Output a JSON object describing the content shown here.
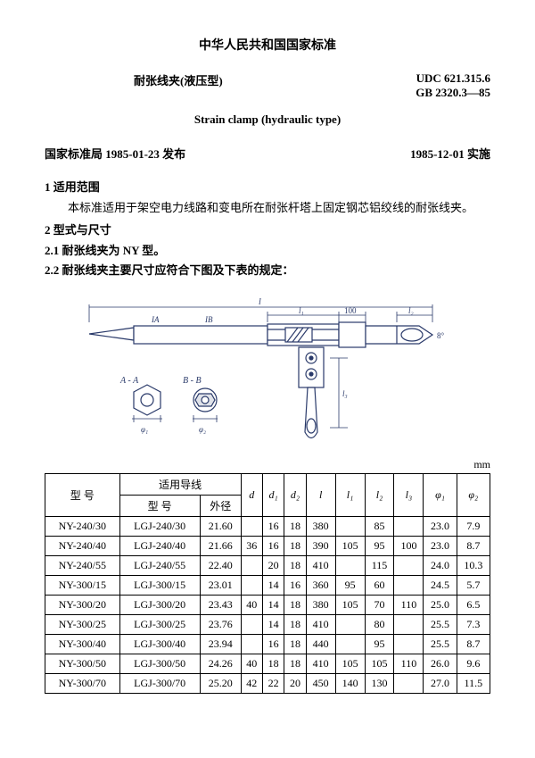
{
  "header": {
    "main_title": "中华人民共和国国家标准",
    "sub_title_cn": "耐张线夹(液压型)",
    "code_udc": "UDC  621.315.6",
    "code_gb": "GB  2320.3—85",
    "sub_title_en": "Strain  clamp    (hydraulic  type)",
    "publisher": "国家标准局 1985-01-23 发布",
    "effective": "1985-12-01 实施"
  },
  "sections": {
    "s1_head": "1 适用范围",
    "s1_body": "本标准适用于架空电力线路和变电所在耐张杆塔上固定钢芯铝绞线的耐张线夹。",
    "s2_head": "2 型式与尺寸",
    "s2_1": "2.1  耐张线夹为 NY 型。",
    "s2_2": "2.2  耐张线夹主要尺寸应符合下图及下表的规定："
  },
  "figure": {
    "labels": {
      "l": "l",
      "l1": "l₁",
      "l2": "l₂",
      "hundred": "100",
      "l3": "l₃",
      "angle": "8°",
      "aa": "A - A",
      "bb": "B - B",
      "phi1": "φ₁",
      "phi2": "φ₂",
      "ia": "IA",
      "ib": "IB"
    }
  },
  "unit": "mm",
  "table": {
    "headers": {
      "model": "型  号",
      "wire_group": "适用导线",
      "wire_model": "型    号",
      "wire_diam": "外径",
      "d": "d",
      "d1": "d₁",
      "d2": "d₂",
      "l": "l",
      "l1": "l₁",
      "l2": "l₂",
      "l3": "l₃",
      "phi1": "φ₁",
      "phi2": "φ₂"
    },
    "rows": [
      {
        "model": "NY-240/30",
        "wm": "LGJ-240/30",
        "wd": "21.60",
        "d": "",
        "d1": "16",
        "d2": "18",
        "l": "380",
        "l1": "",
        "l2": "85",
        "l3": "",
        "p1": "23.0",
        "p2": "7.9"
      },
      {
        "model": "NY-240/40",
        "wm": "LGJ-240/40",
        "wd": "21.66",
        "d": "36",
        "d1": "16",
        "d2": "18",
        "l": "390",
        "l1": "105",
        "l2": "95",
        "l3": "100",
        "p1": "23.0",
        "p2": "8.7"
      },
      {
        "model": "NY-240/55",
        "wm": "LGJ-240/55",
        "wd": "22.40",
        "d": "",
        "d1": "20",
        "d2": "18",
        "l": "410",
        "l1": "",
        "l2": "115",
        "l3": "",
        "p1": "24.0",
        "p2": "10.3"
      },
      {
        "model": "NY-300/15",
        "wm": "LGJ-300/15",
        "wd": "23.01",
        "d": "",
        "d1": "14",
        "d2": "16",
        "l": "360",
        "l1": "95",
        "l2": "60",
        "l3": "",
        "p1": "24.5",
        "p2": "5.7"
      },
      {
        "model": "NY-300/20",
        "wm": "LGJ-300/20",
        "wd": "23.43",
        "d": "40",
        "d1": "14",
        "d2": "18",
        "l": "380",
        "l1": "105",
        "l2": "70",
        "l3": "110",
        "p1": "25.0",
        "p2": "6.5"
      },
      {
        "model": "NY-300/25",
        "wm": "LGJ-300/25",
        "wd": "23.76",
        "d": "",
        "d1": "14",
        "d2": "18",
        "l": "410",
        "l1": "",
        "l2": "80",
        "l3": "",
        "p1": "25.5",
        "p2": "7.3"
      },
      {
        "model": "NY-300/40",
        "wm": "LGJ-300/40",
        "wd": "23.94",
        "d": "",
        "d1": "16",
        "d2": "18",
        "l": "440",
        "l1": "",
        "l2": "95",
        "l3": "",
        "p1": "25.5",
        "p2": "8.7"
      },
      {
        "model": "NY-300/50",
        "wm": "LGJ-300/50",
        "wd": "24.26",
        "d": "40",
        "d1": "18",
        "d2": "18",
        "l": "410",
        "l1": "105",
        "l2": "105",
        "l3": "110",
        "p1": "26.0",
        "p2": "9.6"
      },
      {
        "model": "NY-300/70",
        "wm": "LGJ-300/70",
        "wd": "25.20",
        "d": "42",
        "d1": "22",
        "d2": "20",
        "l": "450",
        "l1": "140",
        "l2": "130",
        "l3": "",
        "p1": "27.0",
        "p2": "11.5"
      }
    ]
  }
}
